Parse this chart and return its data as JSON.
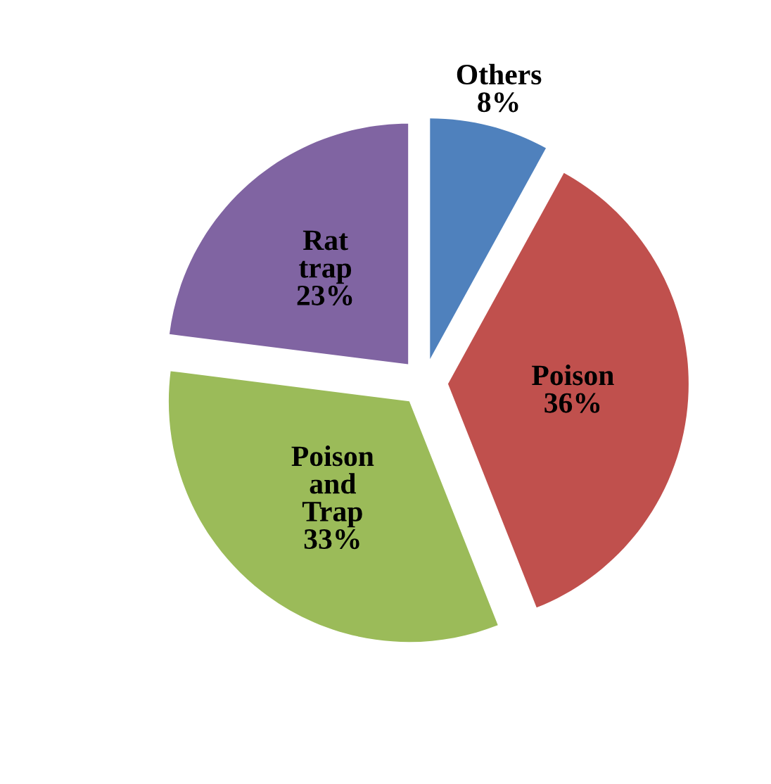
{
  "chart_data": {
    "type": "pie",
    "categories": [
      "Others",
      "Poison",
      "Poison and Trap",
      "Rat trap"
    ],
    "values": [
      8,
      36,
      33,
      23
    ],
    "colors": [
      "#4f81bd",
      "#c0504d",
      "#9bbb59",
      "#8064a2"
    ],
    "value_labels": [
      "8%",
      "36%",
      "33%",
      "23%"
    ]
  }
}
